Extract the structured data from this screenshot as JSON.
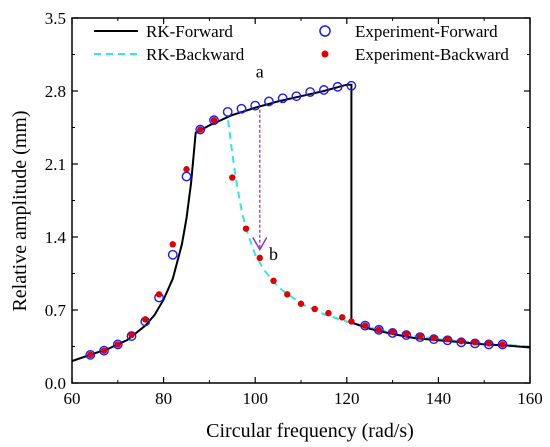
{
  "chart_data": {
    "type": "line",
    "xlabel": "Circular frequency (rad/s)",
    "ylabel": "Relative amplitude (mm)",
    "xlim": [
      60,
      160
    ],
    "ylim": [
      0.0,
      3.5
    ],
    "xticks": [
      60,
      80,
      100,
      120,
      140,
      160
    ],
    "yticks": [
      0.0,
      0.7,
      1.4,
      2.1,
      2.8,
      3.5
    ],
    "xtick_labels": [
      "60",
      "80",
      "100",
      "120",
      "140",
      "160"
    ],
    "ytick_labels": [
      "0.0",
      "0.7",
      "1.4",
      "2.1",
      "2.8",
      "3.5"
    ],
    "grid": false,
    "legend_position": "top",
    "colors": {
      "rk_forward": "#000000",
      "rk_backward": "#33e6e6",
      "exp_forward": "#1a1aff",
      "exp_backward": "#e00000",
      "jump_arrow": "#9933cc"
    },
    "series": [
      {
        "name": "RK-Forward",
        "style": "solid-line",
        "x": [
          60,
          64,
          68,
          72,
          76,
          78,
          80,
          82,
          84,
          85,
          86,
          87,
          90,
          95,
          100,
          105,
          110,
          115,
          120,
          121,
          121,
          125,
          130,
          135,
          140,
          145,
          150,
          155,
          160
        ],
        "y": [
          0.21,
          0.27,
          0.33,
          0.41,
          0.55,
          0.65,
          0.8,
          1.0,
          1.33,
          1.58,
          1.92,
          2.4,
          2.47,
          2.57,
          2.64,
          2.7,
          2.75,
          2.8,
          2.86,
          2.86,
          0.58,
          0.52,
          0.47,
          0.43,
          0.41,
          0.39,
          0.37,
          0.36,
          0.34
        ]
      },
      {
        "name": "RK-Backward",
        "style": "dashed-line",
        "x": [
          60,
          64,
          68,
          72,
          76,
          78,
          80,
          82,
          84,
          85,
          86,
          87,
          90,
          93,
          94,
          95,
          96,
          97,
          98,
          100,
          102,
          105,
          110,
          115,
          120,
          125,
          130,
          140,
          150,
          160
        ],
        "y": [
          0.21,
          0.27,
          0.33,
          0.41,
          0.55,
          0.65,
          0.8,
          1.0,
          1.33,
          1.58,
          1.92,
          2.4,
          2.47,
          2.53,
          2.55,
          2.2,
          1.9,
          1.66,
          1.48,
          1.23,
          1.08,
          0.92,
          0.76,
          0.66,
          0.59,
          0.53,
          0.48,
          0.42,
          0.38,
          0.35
        ]
      },
      {
        "name": "Experiment-Forward",
        "style": "open-circle",
        "x": [
          64,
          67,
          70,
          73,
          76,
          79,
          82,
          85,
          88,
          91,
          94,
          97,
          100,
          103,
          106,
          109,
          112,
          115,
          118,
          121,
          124,
          127,
          130,
          133,
          136,
          139,
          142,
          145,
          148,
          151,
          154
        ],
        "y": [
          0.27,
          0.31,
          0.37,
          0.45,
          0.59,
          0.82,
          1.23,
          1.98,
          2.43,
          2.52,
          2.6,
          2.63,
          2.66,
          2.7,
          2.73,
          2.75,
          2.79,
          2.81,
          2.84,
          2.85,
          0.55,
          0.51,
          0.48,
          0.46,
          0.44,
          0.42,
          0.41,
          0.39,
          0.38,
          0.37,
          0.37
        ]
      },
      {
        "name": "Experiment-Backward",
        "style": "filled-dot",
        "x": [
          64,
          67,
          70,
          73,
          76,
          79,
          82,
          85,
          88,
          91,
          95,
          98,
          101,
          104,
          107,
          110,
          113,
          116,
          119,
          121,
          124,
          127,
          130,
          133,
          136,
          139,
          142,
          145,
          148,
          151,
          154
        ],
        "y": [
          0.27,
          0.31,
          0.37,
          0.46,
          0.61,
          0.85,
          1.33,
          2.05,
          2.43,
          2.52,
          1.97,
          1.48,
          1.2,
          0.98,
          0.85,
          0.76,
          0.71,
          0.67,
          0.63,
          0.59,
          0.55,
          0.51,
          0.49,
          0.47,
          0.45,
          0.43,
          0.42,
          0.4,
          0.39,
          0.38,
          0.37
        ]
      }
    ],
    "annotations": [
      {
        "text": "a",
        "x": 101,
        "y": 2.93
      },
      {
        "text": "b",
        "x": 104,
        "y": 1.18
      }
    ],
    "jump_arrow": {
      "x": 101,
      "y_from": 2.62,
      "y_to": 1.28
    }
  }
}
